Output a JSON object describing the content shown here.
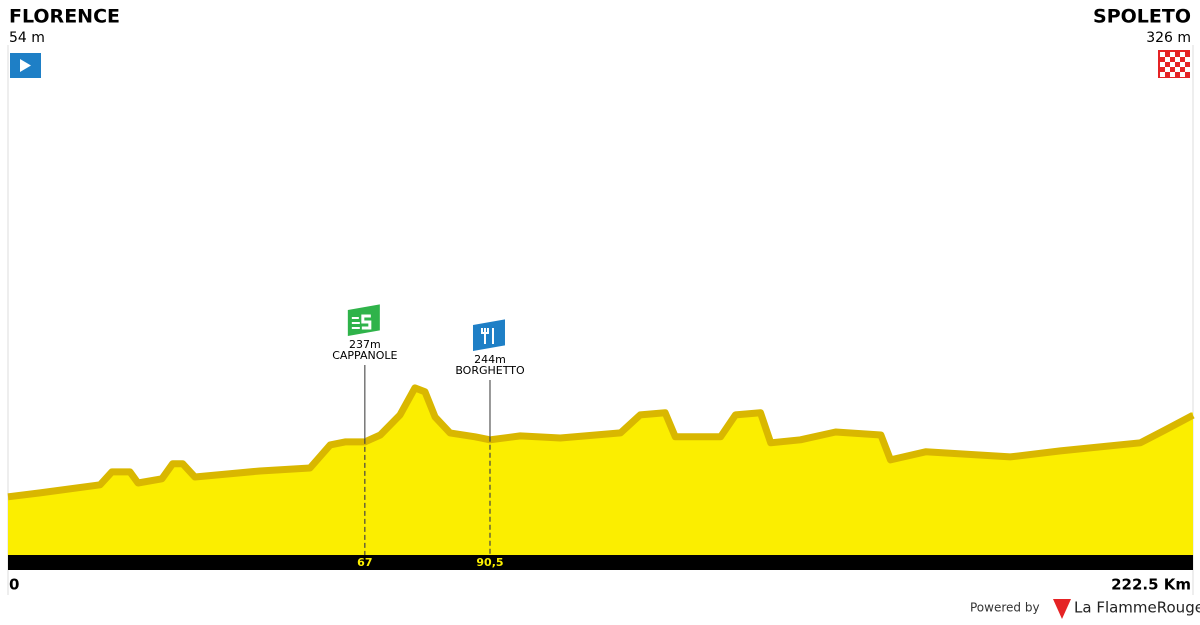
{
  "chart_data": {
    "type": "area",
    "start": {
      "name": "FLORENCE",
      "elevation": {
        "value": 54,
        "label": "54 m"
      }
    },
    "finish": {
      "name": "SPOLETO",
      "elevation": {
        "value": 326,
        "label": "326 m"
      }
    },
    "x": [
      0,
      6.0,
      17.3,
      19.5,
      22.9,
      24.4,
      28.9,
      30.9,
      32.8,
      35.1,
      47.3,
      56.7,
      60.5,
      63.3,
      67,
      69.9,
      73.6,
      76.4,
      78.3,
      80.2,
      83.0,
      87.7,
      90.5,
      96.2,
      103.7,
      115.0,
      118.7,
      123.4,
      125.3,
      133.8,
      136.6,
      141.3,
      143.2,
      148.8,
      155.4,
      163.9,
      165.7,
      172.3,
      188.2,
      197.6,
      212.6,
      217.3,
      222.5
    ],
    "values": [
      54,
      67,
      94,
      137,
      137,
      100,
      114,
      164,
      164,
      120,
      140,
      150,
      227,
      237,
      237,
      260,
      327,
      417,
      404,
      320,
      267,
      254,
      244,
      257,
      250,
      267,
      327,
      334,
      254,
      254,
      327,
      334,
      234,
      244,
      270,
      260,
      177,
      204,
      187,
      207,
      234,
      277,
      326
    ],
    "color": "#fbee00",
    "edge_color": "#d9b700",
    "xlim": [
      0,
      222.5
    ],
    "xticks": [
      0,
      {
        "value": 222.5,
        "label": "222.5 Km"
      }
    ],
    "ylim": [
      -150,
      1550
    ],
    "points": [
      {
        "x": 67,
        "elevation": {
          "value": 237,
          "label": "237m"
        },
        "name": "CAPPANOLE",
        "kind": "sprint",
        "color": "#2fb34a"
      },
      {
        "x": {
          "value": 90.5,
          "label": "90,5"
        },
        "elevation": {
          "value": 244,
          "label": "244m"
        },
        "name": "BORGHETTO",
        "kind": "feed",
        "color": "#1e7fc6"
      }
    ],
    "credit": {
      "prefix": "Powered by",
      "brand": "La FlammeRouge"
    }
  }
}
